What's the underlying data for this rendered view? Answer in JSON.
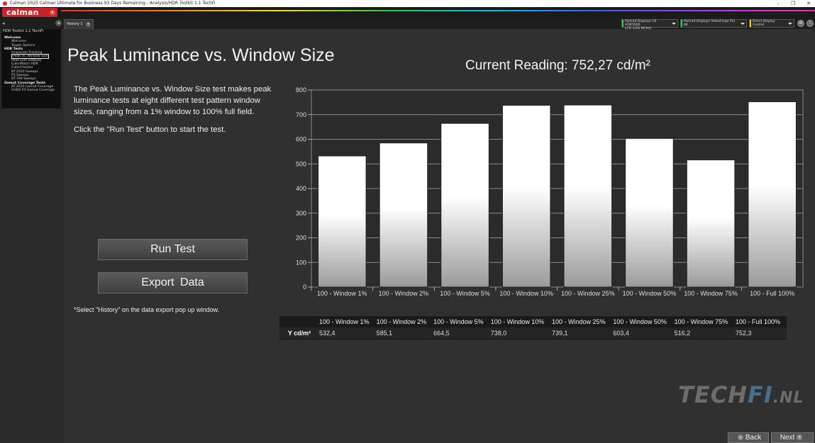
{
  "window": {
    "title": "Calman 2025 Calman Ultimate for Business 93 Days Remaining  - Analysis/HDR Toolkit 1.1 TechFi",
    "controls": [
      "–",
      "❐",
      "✕"
    ]
  },
  "brand": {
    "logo": "calman"
  },
  "tabs": {
    "history_tab": "History 1",
    "devices": [
      {
        "line1": "Portrait Displays C6 HDR5000",
        "line2": "LCD (LED White)",
        "accent": "#2ecc40"
      },
      {
        "line1": "Portrait Displays VideoForge Pro 8K",
        "line2": "",
        "accent": "#2ecc40"
      },
      {
        "line1": "Direct Display Control",
        "line2": "",
        "accent": "#ffd400"
      }
    ]
  },
  "sidebar": {
    "title": "HDR Toolkit 1.1 TechFi",
    "items": [
      {
        "label": "Welcome",
        "type": "cat"
      },
      {
        "label": "Welcome",
        "type": "sub"
      },
      {
        "label": "Target Options",
        "type": "sub"
      },
      {
        "label": "HDR Tests",
        "type": "cat"
      },
      {
        "label": "Grayscale Tracking",
        "type": "sub"
      },
      {
        "label": "Peak vs. Window Size",
        "type": "sub active"
      },
      {
        "label": "Peak Lum Stability",
        "type": "sub"
      },
      {
        "label": "ColorMatch HDR",
        "type": "sub"
      },
      {
        "label": "ColorChecker",
        "type": "sub"
      },
      {
        "label": "BT.2020 Sweeps",
        "type": "sub"
      },
      {
        "label": "P3 Sweeps",
        "type": "sub"
      },
      {
        "label": "BT.709 Sweeps",
        "type": "sub"
      },
      {
        "label": "Gamut Coverage Tests",
        "type": "cat"
      },
      {
        "label": "BT.2020 Gamut Coverage",
        "type": "sub"
      },
      {
        "label": "UHDA P3 Gamut Coverage",
        "type": "sub"
      }
    ]
  },
  "main": {
    "title": "Peak Luminance vs. Window Size",
    "current_reading": "Current Reading: 752,27 cd/m²",
    "description": "The Peak Luminance vs. Window Size test makes peak luminance tests at eight different test pattern window sizes, ranging from a 1% window to 100% full field.",
    "instruction": "Click the \"Run Test\" button to start the test.",
    "run_button": "Run Test",
    "export_button": "Export Data",
    "footnote": "*Select \"History\" on the data export pop up window."
  },
  "chart_data": {
    "type": "bar",
    "categories": [
      "100 - Window  1%",
      "100 - Window  2%",
      "100 - Window  5%",
      "100 - Window 10%",
      "100 - Window 25%",
      "100 - Window 50%",
      "100 - Window 75%",
      "100 - Full  100%"
    ],
    "values": [
      532.4,
      585.1,
      664.5,
      738.0,
      739.1,
      603.4,
      516.2,
      752.3
    ],
    "ylim": [
      0,
      800
    ],
    "yticks": [
      "0",
      "100",
      "200",
      "300",
      "400",
      "500",
      "600",
      "700",
      "800"
    ],
    "grid": true,
    "xlabel": "",
    "ylabel": ""
  },
  "table": {
    "row_label": "Y cd/m²",
    "headers": [
      "100 - Window  1%",
      "100 - Window  2%",
      "100 - Window  5%",
      "100 - Window 10%",
      "100 - Window 25%",
      "100 - Window 50%",
      "100 - Window 75%",
      "100 - Full  100%"
    ],
    "values": [
      "532,4",
      "585,1",
      "664,5",
      "738,0",
      "739,1",
      "603,4",
      "516,2",
      "752,3"
    ]
  },
  "watermark": {
    "tech": "TECH",
    "fi": "FI",
    "nl": ".NL"
  },
  "nav": {
    "back": "Back",
    "next": "Next"
  }
}
